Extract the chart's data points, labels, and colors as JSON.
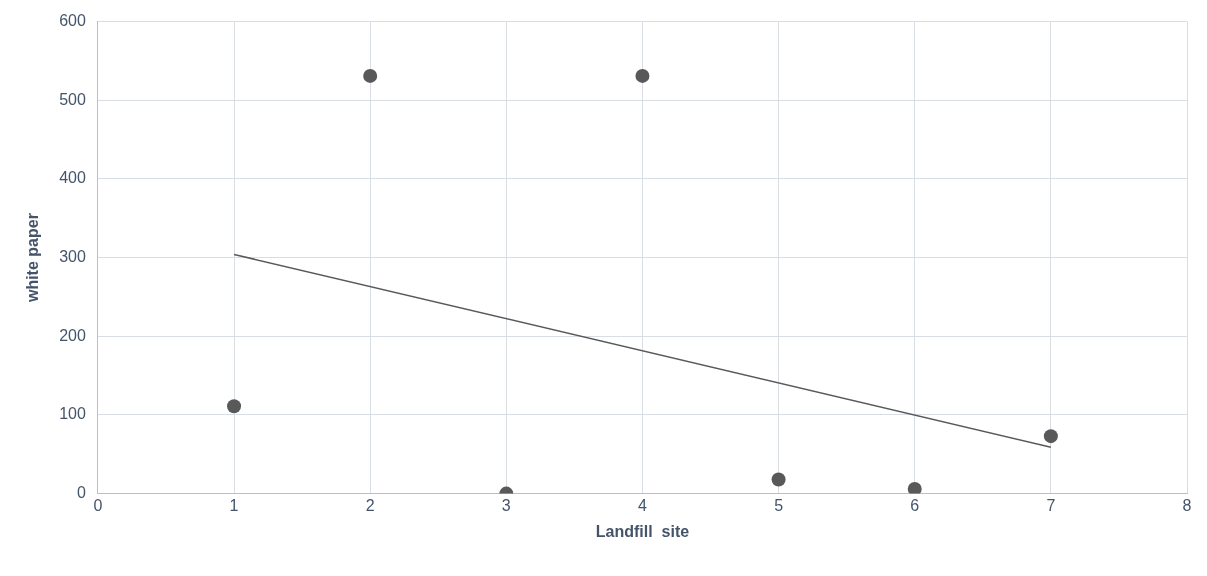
{
  "chart_data": {
    "type": "scatter",
    "xlabel": "Landfill  site",
    "ylabel": "white paper",
    "xlim": [
      0,
      8
    ],
    "xticks": [
      0,
      1,
      2,
      3,
      4,
      5,
      6,
      7,
      8
    ],
    "ylim": [
      0,
      600
    ],
    "yticks": [
      0,
      100,
      200,
      300,
      400,
      500,
      600
    ],
    "grid": true,
    "legend": false,
    "marker": "circle",
    "series": [
      {
        "color": "#595959",
        "x": [
          1,
          2,
          3,
          4,
          5,
          6,
          7
        ],
        "values": [
          111,
          531,
          0,
          531,
          18,
          6,
          73
        ]
      },
      {
        "type": "line",
        "color": "#595959",
        "x": [
          1,
          7
        ],
        "values": [
          304,
          59
        ],
        "marker": "none"
      }
    ]
  }
}
